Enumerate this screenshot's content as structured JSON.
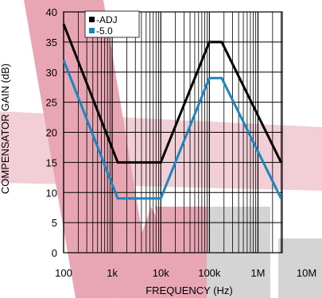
{
  "chart_data": {
    "type": "line",
    "xlabel": "FREQUENCY (Hz)",
    "ylabel": "COMPENSATOR GAIN (dB)",
    "x_scale": "log",
    "xlim": [
      100,
      10000000
    ],
    "ylim": [
      0,
      40
    ],
    "grid": true,
    "legend_position": "top-left",
    "x_tick_labels": [
      "100",
      "1k",
      "10k",
      "100k",
      "1M",
      "10M"
    ],
    "x_tick_values": [
      100,
      1000,
      10000,
      100000,
      1000000,
      10000000
    ],
    "y_tick_labels": [
      "0",
      "5",
      "10",
      "15",
      "20",
      "25",
      "30",
      "35",
      "40"
    ],
    "y_tick_values": [
      0,
      5,
      10,
      15,
      20,
      25,
      30,
      35,
      40
    ],
    "series": [
      {
        "name": "-ADJ",
        "color": "#000000",
        "x": [
          100,
          1300,
          10000,
          100000,
          180000,
          3000000
        ],
        "y": [
          38,
          15,
          15,
          35,
          35,
          15
        ]
      },
      {
        "name": "-5.0",
        "color": "#1a86c0",
        "x": [
          100,
          1300,
          10000,
          100000,
          180000,
          3000000
        ],
        "y": [
          32,
          9,
          9,
          29,
          29,
          9
        ]
      }
    ]
  },
  "colors": {
    "watermark": "#e8a6b4",
    "watermark_gray": "#d4d4d4"
  }
}
